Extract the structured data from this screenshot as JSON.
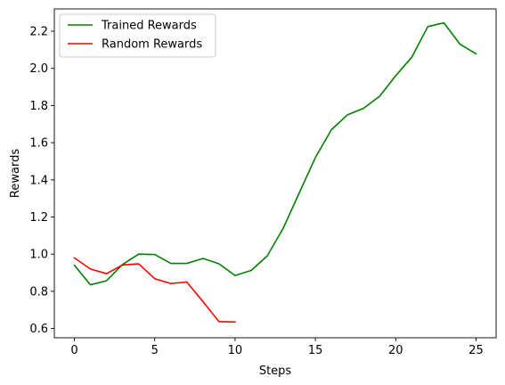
{
  "chart_data": {
    "type": "line",
    "title": "",
    "xlabel": "Steps",
    "ylabel": "Rewards",
    "xlim": [
      -1.25,
      26.25
    ],
    "ylim": [
      0.55,
      2.32
    ],
    "xticks": [
      0,
      5,
      10,
      15,
      20,
      25
    ],
    "xtick_labels": [
      "0",
      "5",
      "10",
      "15",
      "20",
      "25"
    ],
    "yticks": [
      0.6,
      0.8,
      1.0,
      1.2,
      1.4,
      1.6,
      1.8,
      2.0,
      2.2
    ],
    "ytick_labels": [
      "0.6",
      "0.8",
      "1.0",
      "1.2",
      "1.4",
      "1.6",
      "1.8",
      "2.0",
      "2.2"
    ],
    "grid": false,
    "legend_position": "top-left",
    "series": [
      {
        "name": "Trained Rewards",
        "color": "#008000",
        "x": [
          0,
          1,
          2,
          3,
          4,
          5,
          6,
          7,
          8,
          9,
          10,
          11,
          12,
          13,
          14,
          15,
          16,
          17,
          18,
          19,
          20,
          21,
          22,
          23,
          24,
          25
        ],
        "values": [
          0.94,
          0.835,
          0.857,
          0.945,
          1.0,
          0.998,
          0.95,
          0.95,
          0.977,
          0.948,
          0.885,
          0.912,
          0.99,
          1.14,
          1.33,
          1.52,
          1.67,
          1.75,
          1.785,
          1.85,
          1.96,
          2.06,
          2.225,
          2.245,
          2.13,
          2.078
        ]
      },
      {
        "name": "Random Rewards",
        "color": "#ff0000",
        "x": [
          0,
          1,
          2,
          3,
          4,
          5,
          6,
          7,
          8,
          9,
          10
        ],
        "values": [
          0.98,
          0.92,
          0.895,
          0.942,
          0.948,
          0.868,
          0.842,
          0.85,
          0.745,
          0.637,
          0.635
        ]
      }
    ]
  }
}
